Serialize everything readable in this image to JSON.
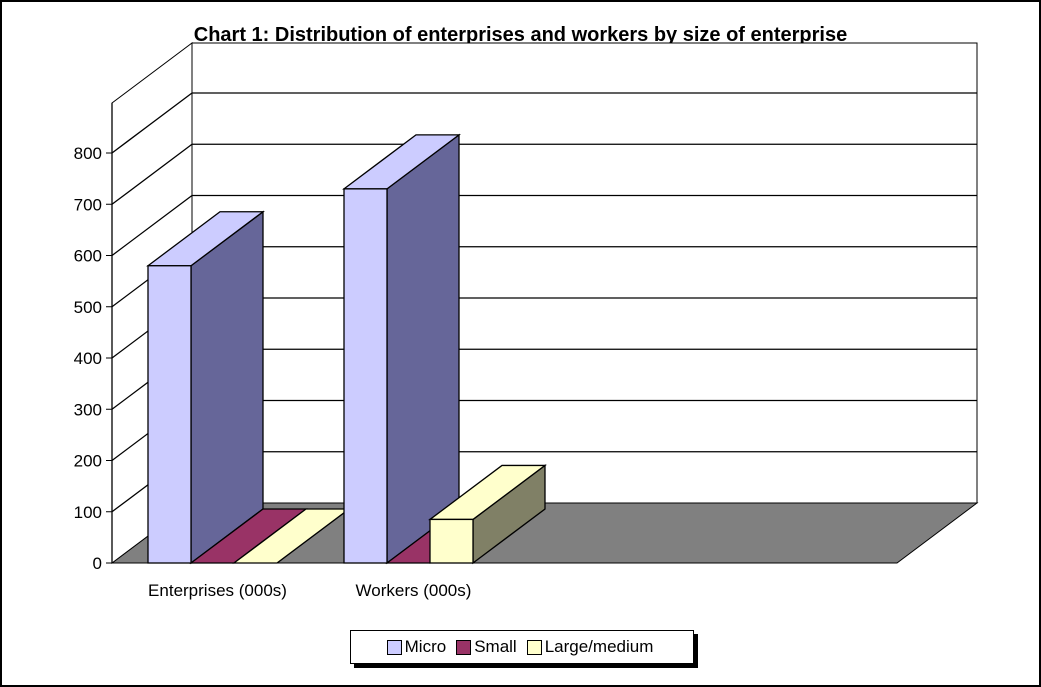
{
  "chart_data": {
    "type": "bar",
    "title": "Chart 1:   Distribution of enterprises and workers by size of enterprise",
    "categories": [
      "Enterprises (000s)",
      "Workers (000s)"
    ],
    "series": [
      {
        "name": "Micro",
        "values": [
          580,
          730
        ],
        "color": "#CCCCFF",
        "side_color": "#666699"
      },
      {
        "name": "Small",
        "values": [
          0,
          0
        ],
        "color": "#993366",
        "side_color": "#4D1A33"
      },
      {
        "name": "Large/medium",
        "values": [
          0,
          85
        ],
        "color": "#FFFFCC",
        "side_color": "#808066"
      }
    ],
    "ylim": [
      0,
      800
    ],
    "y_ticks": [
      "0",
      "100",
      "200",
      "300",
      "400",
      "500",
      "600",
      "700",
      "800"
    ],
    "grid": true,
    "legend_position": "bottom",
    "three_d": true,
    "colors": {
      "floor": "#808080",
      "walls": "#ffffff",
      "grid": "#000000"
    }
  }
}
